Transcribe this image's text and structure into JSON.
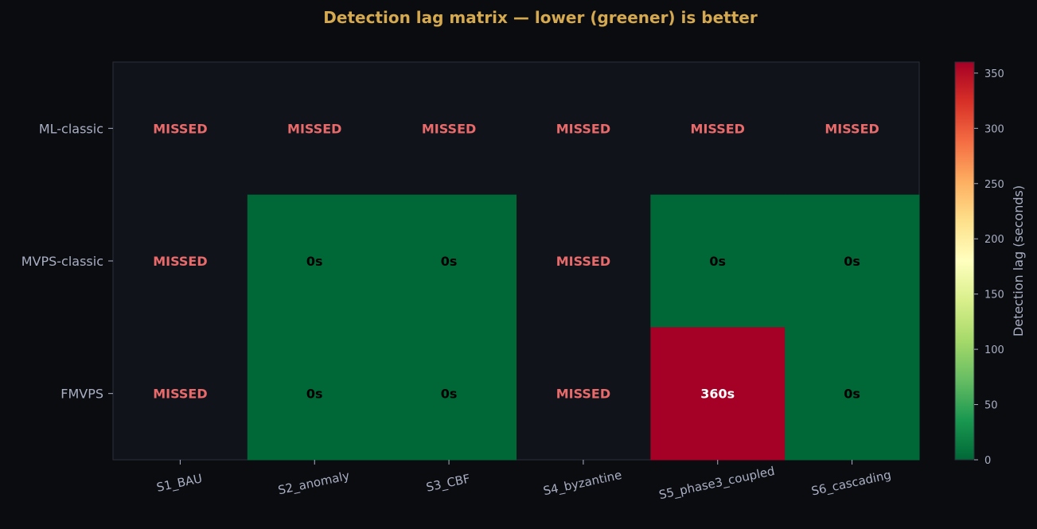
{
  "chart_data": {
    "type": "heatmap",
    "title": "Detection lag matrix — lower (greener) is better",
    "xlabel": "",
    "ylabel": "",
    "x_categories": [
      "S1_BAU",
      "S2_anomaly",
      "S3_CBF",
      "S4_byzantine",
      "S5_phase3_coupled",
      "S6_cascading"
    ],
    "y_categories": [
      "ML-classic",
      "MVPS-classic",
      "FMVPS"
    ],
    "values": [
      [
        null,
        null,
        null,
        null,
        null,
        null
      ],
      [
        null,
        0,
        0,
        null,
        0,
        0
      ],
      [
        null,
        0,
        0,
        null,
        360,
        0
      ]
    ],
    "missing_label": "MISSED",
    "value_unit_suffix": "s",
    "colorbar": {
      "label": "Detection lag (seconds)",
      "range": [
        0,
        360
      ],
      "ticks": [
        0,
        50,
        100,
        150,
        200,
        250,
        300,
        350
      ],
      "colormap": "RdYlGn_r"
    },
    "colors": {
      "background": "#0b0c10",
      "plot_background": "#11131b",
      "title": "#d4a94f",
      "missed_text": "#e86a6a",
      "axis_text": "#a9afc3",
      "tick_text": "#a9afc3"
    }
  }
}
